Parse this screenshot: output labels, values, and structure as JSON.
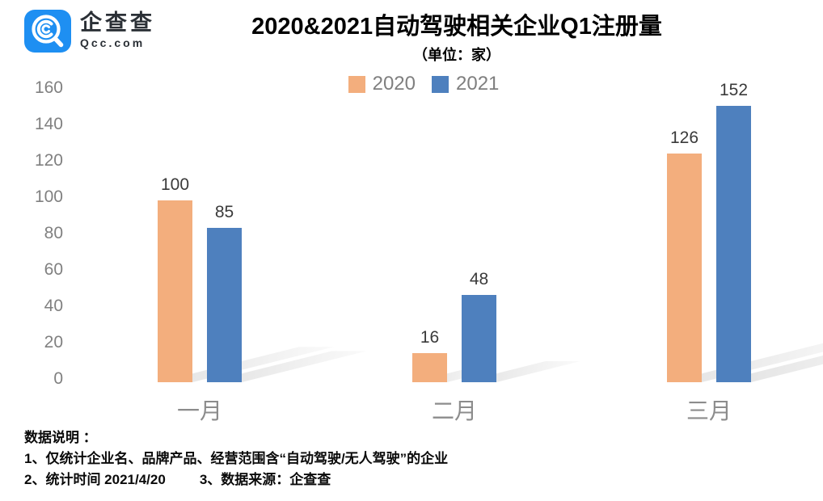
{
  "brand": {
    "name": "企查查",
    "domain": "Qcc.com"
  },
  "title": "2020&2021自动驾驶相关企业Q1注册量",
  "subtitle": "（单位：家）",
  "chart_data": {
    "type": "bar",
    "title": "2020&2021自动驾驶相关企业Q1注册量",
    "subtitle_unit": "（单位：家）",
    "categories": [
      "一月",
      "二月",
      "三月"
    ],
    "series": [
      {
        "name": "2020",
        "color": "#F3AE7D",
        "values": [
          100,
          16,
          126
        ]
      },
      {
        "name": "2021",
        "color": "#4E80BE",
        "values": [
          85,
          48,
          152
        ]
      }
    ],
    "ylim": [
      0,
      160
    ],
    "yticks": [
      0,
      20,
      40,
      60,
      80,
      100,
      120,
      140,
      160
    ],
    "grid": false,
    "axis_line": false,
    "data_labels": true,
    "legend_position": "top-center",
    "axis_text_color": "#808080",
    "value_label_color": "#3A3A3A"
  },
  "footer": {
    "heading": "数据说明 ：",
    "line1": "1、仅统计企业名、品牌产品、经营范围含“自动驾驶/无人驾驶”的企业",
    "line2_left": "2、统计时间 2021/4/20",
    "line2_right": "3、数据来源：企查查"
  },
  "logo_color": "#1E8FF2"
}
